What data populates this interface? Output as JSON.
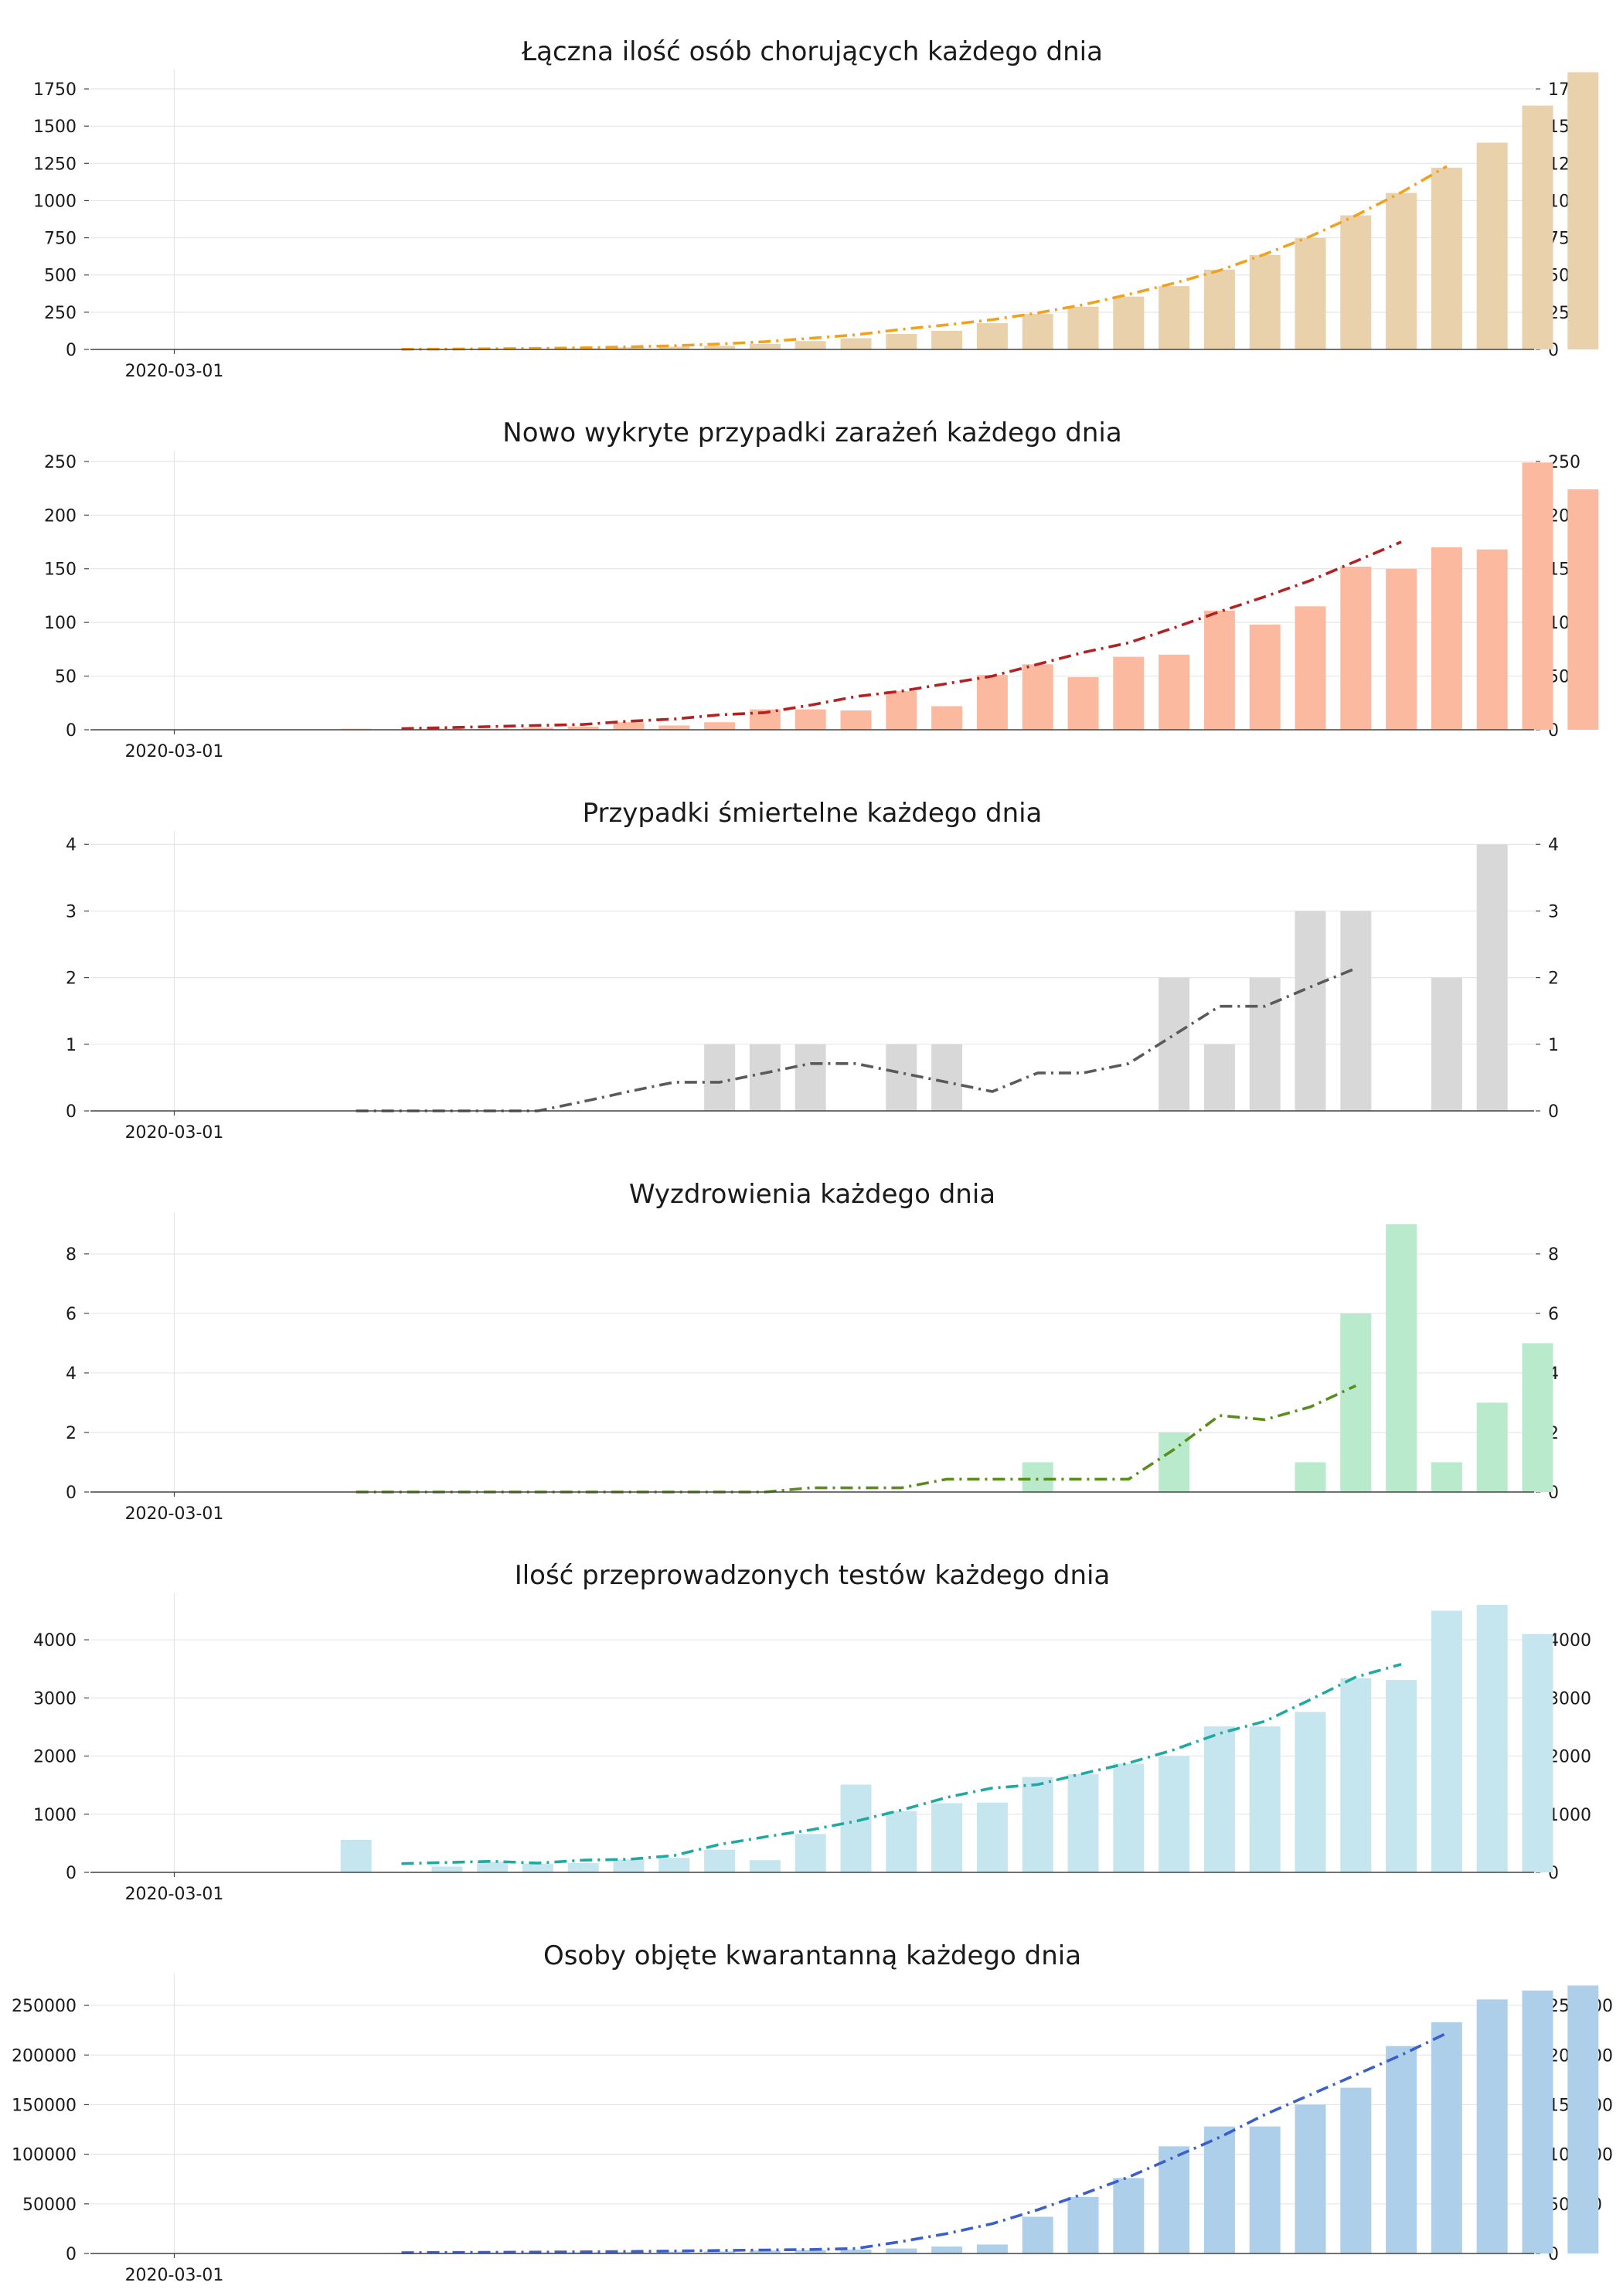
{
  "chart_data": [
    {
      "type": "bar",
      "title": "Łączna ilość osób chorujących każdego dnia",
      "xlabel": "",
      "ylabel": "",
      "x_tick_labels": [
        "2020-03-01"
      ],
      "y_ticks": [
        0,
        250,
        500,
        750,
        1000,
        1250,
        1500,
        1750
      ],
      "ylim": [
        0,
        1880
      ],
      "grid": true,
      "colors": {
        "bar": "#e8d1ab",
        "line": "#f0a21e"
      },
      "series": [
        {
          "type": "bar",
          "values": [
            0,
            0,
            0,
            0,
            0,
            0,
            0,
            2,
            4,
            7,
            14,
            18,
            25,
            37,
            56,
            75,
            104,
            125,
            176,
            238,
            287,
            355,
            425,
            536,
            634,
            749,
            901,
            1051,
            1221,
            1389,
            1638,
            1862
          ]
        },
        {
          "type": "line",
          "style": "dash-dot",
          "values": [
            null,
            null,
            null,
            null,
            null,
            1,
            2,
            4,
            7,
            11,
            17,
            25,
            37,
            52,
            75,
            98,
            135,
            165,
            200,
            245,
            300,
            370,
            445,
            530,
            640,
            760,
            900,
            1055,
            1230
          ]
        }
      ]
    },
    {
      "type": "bar",
      "title": "Nowo wykryte przypadki zarażeń każdego dnia",
      "xlabel": "",
      "ylabel": "",
      "x_tick_labels": [
        "2020-03-01"
      ],
      "y_ticks": [
        0,
        50,
        100,
        150,
        200,
        250
      ],
      "ylim": [
        0,
        260
      ],
      "grid": true,
      "colors": {
        "bar": "#fbbaa0",
        "line": "#b22222"
      },
      "series": [
        {
          "type": "bar",
          "values": [
            0,
            0,
            0,
            0,
            1,
            0,
            1,
            1,
            2,
            3,
            7,
            4,
            7,
            19,
            19,
            18,
            36,
            22,
            51,
            61,
            49,
            68,
            70,
            111,
            98,
            115,
            152,
            150,
            170,
            168,
            249,
            224
          ]
        },
        {
          "type": "line",
          "style": "dash-dot",
          "values": [
            null,
            null,
            null,
            null,
            null,
            1,
            2,
            3,
            4,
            5,
            8,
            10,
            14,
            16,
            23,
            31,
            36,
            43,
            50,
            61,
            72,
            81,
            95,
            110,
            124,
            139,
            157,
            175
          ]
        }
      ]
    },
    {
      "type": "bar",
      "title": "Przypadki śmiertelne każdego dnia",
      "xlabel": "",
      "ylabel": "",
      "x_tick_labels": [
        "2020-03-01"
      ],
      "y_ticks": [
        0,
        1,
        2,
        3,
        4
      ],
      "ylim": [
        0,
        4.2
      ],
      "grid": true,
      "colors": {
        "bar": "#d8d8d8",
        "line": "#5a5a5a"
      },
      "series": [
        {
          "type": "bar",
          "values": [
            0,
            0,
            0,
            0,
            0,
            0,
            0,
            0,
            0,
            0,
            0,
            0,
            1,
            1,
            1,
            0,
            1,
            1,
            0,
            0,
            0,
            0,
            2,
            1,
            2,
            3,
            3,
            0,
            2,
            4
          ]
        },
        {
          "type": "line",
          "style": "dash-dot",
          "values": [
            null,
            null,
            null,
            null,
            0,
            0,
            0,
            0,
            0,
            0.14,
            0.29,
            0.43,
            0.43,
            0.57,
            0.71,
            0.71,
            0.57,
            0.43,
            0.29,
            0.57,
            0.57,
            0.71,
            1.14,
            1.57,
            1.57,
            1.86,
            2.14
          ]
        }
      ]
    },
    {
      "type": "bar",
      "title": "Wyzdrowienia każdego dnia",
      "xlabel": "",
      "ylabel": "",
      "x_tick_labels": [
        "2020-03-01"
      ],
      "y_ticks": [
        0,
        2,
        4,
        6,
        8
      ],
      "ylim": [
        0,
        9.4
      ],
      "grid": true,
      "colors": {
        "bar": "#b9eacb",
        "line": "#5b8c1e"
      },
      "series": [
        {
          "type": "bar",
          "values": [
            0,
            0,
            0,
            0,
            0,
            0,
            0,
            0,
            0,
            0,
            0,
            0,
            0,
            0,
            0,
            0,
            0,
            0,
            0,
            1,
            0,
            0,
            2,
            0,
            0,
            1,
            6,
            9,
            1,
            3,
            5
          ]
        },
        {
          "type": "line",
          "style": "dash-dot",
          "values": [
            null,
            null,
            null,
            null,
            0,
            0,
            0,
            0,
            0,
            0,
            0,
            0,
            0,
            0,
            0.14,
            0.14,
            0.14,
            0.43,
            0.43,
            0.43,
            0.43,
            0.43,
            1.43,
            2.57,
            2.43,
            2.86,
            3.57
          ]
        }
      ]
    },
    {
      "type": "bar",
      "title": "Ilość przeprowadzonych testów każdego dnia",
      "xlabel": "",
      "ylabel": "",
      "x_tick_labels": [
        "2020-03-01"
      ],
      "y_ticks": [
        0,
        1000,
        2000,
        3000,
        4000
      ],
      "ylim": [
        0,
        4800
      ],
      "grid": true,
      "colors": {
        "bar": "#c5e6ef",
        "line": "#20a9a0"
      },
      "series": [
        {
          "type": "bar",
          "values": [
            0,
            0,
            0,
            0,
            560,
            0,
            100,
            180,
            150,
            160,
            220,
            250,
            390,
            210,
            660,
            1510,
            1050,
            1190,
            1200,
            1640,
            1690,
            1870,
            2000,
            2510,
            2510,
            2760,
            3340,
            3310,
            4500,
            4600,
            4100
          ]
        },
        {
          "type": "line",
          "style": "dash-dot",
          "values": [
            null,
            null,
            null,
            null,
            null,
            150,
            170,
            190,
            160,
            210,
            225,
            290,
            480,
            610,
            730,
            880,
            1070,
            1290,
            1450,
            1510,
            1700,
            1880,
            2110,
            2390,
            2600,
            2970,
            3360,
            3580
          ]
        }
      ]
    },
    {
      "type": "bar",
      "title": "Osoby objęte kwarantanną każdego dnia",
      "xlabel": "",
      "ylabel": "",
      "x_tick_labels": [
        "2020-03-01"
      ],
      "y_ticks": [
        0,
        50000,
        100000,
        150000,
        200000,
        250000
      ],
      "ylim": [
        0,
        282000
      ],
      "grid": true,
      "colors": {
        "bar": "#aecfe9",
        "line": "#3a5fcd"
      },
      "series": [
        {
          "type": "bar",
          "values": [
            0,
            0,
            0,
            0,
            500,
            600,
            800,
            1000,
            1100,
            1200,
            1500,
            1800,
            2000,
            3000,
            3500,
            4000,
            5000,
            7000,
            9000,
            37000,
            57000,
            76000,
            108000,
            128000,
            128000,
            150000,
            167000,
            209000,
            233000,
            256000,
            265000,
            270000
          ]
        },
        {
          "type": "line",
          "style": "dash-dot",
          "values": [
            null,
            null,
            null,
            null,
            null,
            800,
            1000,
            1200,
            1400,
            1600,
            2000,
            2500,
            3000,
            3500,
            4000,
            5000,
            12000,
            20000,
            30000,
            44000,
            60000,
            77000,
            97000,
            117000,
            140000,
            160000,
            180000,
            200000,
            222000
          ]
        }
      ]
    }
  ]
}
